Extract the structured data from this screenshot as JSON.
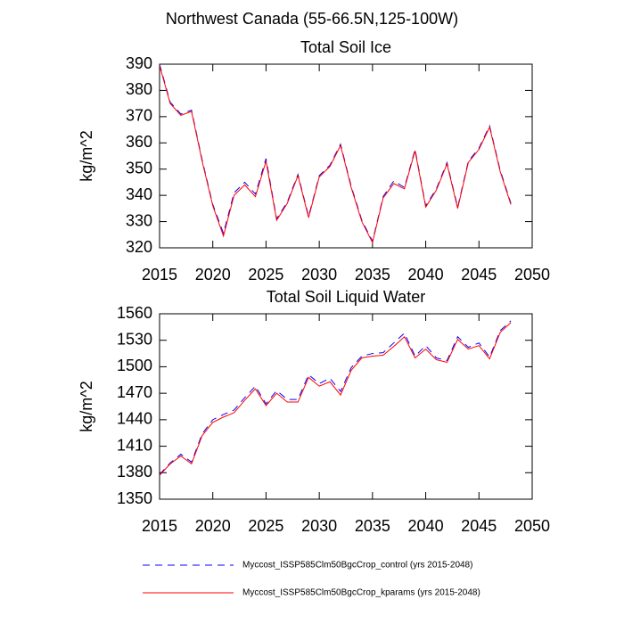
{
  "title": "Northwest Canada (55-66.5N,125-100W)",
  "chart_data": [
    {
      "type": "line",
      "title": "Total Soil Ice",
      "y_label": "kg/m^2",
      "x": [
        2015,
        2016,
        2017,
        2018,
        2019,
        2020,
        2021,
        2022,
        2023,
        2024,
        2025,
        2026,
        2027,
        2028,
        2029,
        2030,
        2031,
        2032,
        2033,
        2034,
        2035,
        2036,
        2037,
        2038,
        2039,
        2040,
        2041,
        2042,
        2043,
        2044,
        2045,
        2046,
        2047,
        2048
      ],
      "series": [
        {
          "name": "Myccost_ISSP585Clm50BgcCrop_control (yrs 2015-2048)",
          "color": "#0000ff",
          "dash": true,
          "values": [
            390,
            375.5,
            371,
            372.5,
            353.5,
            336.5,
            325.5,
            341,
            345,
            340.5,
            354,
            331,
            337.5,
            348,
            332,
            347.5,
            351.5,
            359.5,
            343.5,
            330.5,
            322.5,
            339.5,
            345.5,
            343,
            357.5,
            336,
            342.5,
            352.5,
            335.5,
            353,
            358,
            366.5,
            349.5,
            337
          ]
        },
        {
          "name": "Myccost_ISSP585Clm50BgcCrop_kparams (yrs 2015-2048)",
          "color": "#ff0000",
          "dash": false,
          "values": [
            389.5,
            375,
            370.5,
            372,
            353,
            336,
            324.5,
            340,
            344,
            339.5,
            353,
            330.5,
            337,
            347.5,
            331.5,
            347,
            351,
            359,
            343,
            330,
            322,
            339,
            344.5,
            342.5,
            357,
            335.5,
            342,
            352,
            335,
            352.5,
            357.5,
            366,
            349,
            336.5
          ]
        }
      ],
      "xlim": [
        2015,
        2050
      ],
      "xticks": [
        2015,
        2020,
        2025,
        2030,
        2035,
        2040,
        2045,
        2050
      ],
      "ylim": [
        320,
        390
      ],
      "yticks": [
        320,
        330,
        340,
        350,
        360,
        370,
        380,
        390
      ]
    },
    {
      "type": "line",
      "title": "Total Soil Liquid Water",
      "y_label": "kg/m^2",
      "x": [
        2015,
        2016,
        2017,
        2018,
        2019,
        2020,
        2021,
        2022,
        2023,
        2024,
        2025,
        2026,
        2027,
        2028,
        2029,
        2030,
        2031,
        2032,
        2033,
        2034,
        2035,
        2036,
        2037,
        2038,
        2039,
        2040,
        2041,
        2042,
        2043,
        2044,
        2045,
        2046,
        2047,
        2048
      ],
      "series": [
        {
          "color": "#0000ff",
          "dash": true,
          "values": [
            1378,
            1391,
            1401,
            1392,
            1424,
            1440,
            1446,
            1451,
            1465,
            1478,
            1458,
            1473,
            1463,
            1463,
            1491,
            1481,
            1487,
            1472,
            1499,
            1512,
            1515,
            1516,
            1527,
            1538,
            1512,
            1524,
            1510,
            1507,
            1534,
            1522,
            1527,
            1511,
            1541,
            1552
          ]
        },
        {
          "color": "#ff0000",
          "dash": false,
          "values": [
            1377,
            1390,
            1399,
            1390,
            1422,
            1437,
            1443,
            1448,
            1462,
            1475,
            1456,
            1470,
            1460,
            1460,
            1488,
            1478,
            1483,
            1468,
            1496,
            1510,
            1512,
            1513,
            1523,
            1534,
            1510,
            1520,
            1508,
            1505,
            1531,
            1520,
            1524,
            1509,
            1539,
            1550
          ]
        }
      ],
      "xlim": [
        2015,
        2050
      ],
      "xticks": [
        2015,
        2020,
        2025,
        2030,
        2035,
        2040,
        2045,
        2050
      ],
      "ylim": [
        1350,
        1560
      ],
      "yticks": [
        1350,
        1380,
        1410,
        1440,
        1470,
        1500,
        1530,
        1560
      ]
    }
  ]
}
